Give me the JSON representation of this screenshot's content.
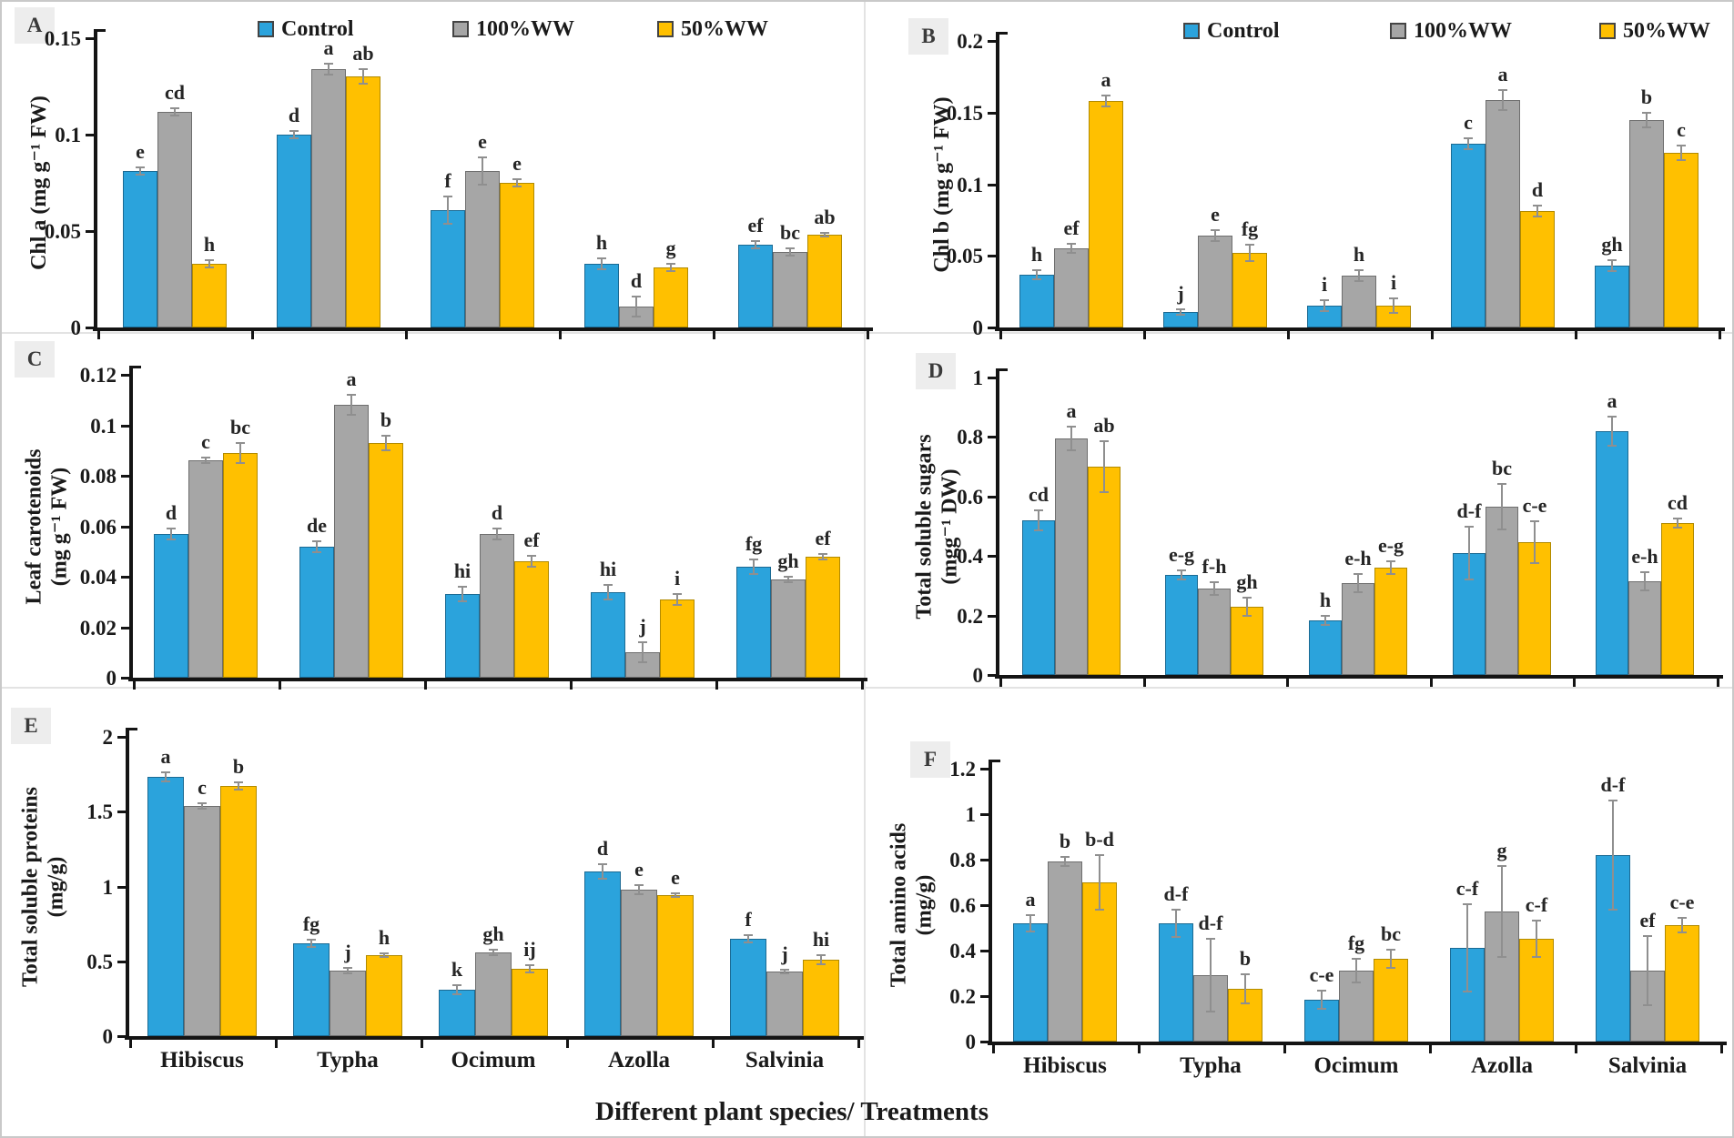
{
  "figure": {
    "x_axis_title": "Different plant species/ Treatments",
    "categories": [
      "Hibiscus",
      "Typha",
      "Ocimum",
      "Azolla",
      "Salvinia"
    ],
    "legend": [
      {
        "label": "Control",
        "color": "#2BA3DC"
      },
      {
        "label": "100%WW",
        "color": "#A6A6A6"
      },
      {
        "label": "50%WW",
        "color": "#FFC000"
      }
    ]
  },
  "chart_data": [
    {
      "panel": "A",
      "type": "bar",
      "ylabel_lines": [
        "Chl a (mg g⁻¹ FW)"
      ],
      "ylim": [
        0,
        0.15
      ],
      "yticks": [
        0,
        0.05,
        0.1,
        0.15
      ],
      "ytick_labels": [
        "0",
        "0.05",
        "0.1",
        "0.15"
      ],
      "has_legend": true,
      "show_category_labels": false,
      "series": [
        {
          "name": "Control",
          "values": [
            0.081,
            0.1,
            0.061,
            0.033,
            0.043
          ],
          "errors": [
            0.002,
            0.002,
            0.007,
            0.003,
            0.002
          ],
          "letters": [
            "e",
            "d",
            "f",
            "h",
            "ef"
          ]
        },
        {
          "name": "100%WW",
          "values": [
            0.112,
            0.134,
            0.081,
            0.011,
            0.039
          ],
          "errors": [
            0.002,
            0.003,
            0.007,
            0.005,
            0.002
          ],
          "letters": [
            "cd",
            "a",
            "e",
            "d",
            "bc"
          ]
        },
        {
          "name": "50%WW",
          "values": [
            0.033,
            0.13,
            0.075,
            0.031,
            0.048
          ],
          "errors": [
            0.002,
            0.004,
            0.002,
            0.002,
            0.001
          ],
          "letters": [
            "h",
            "ab",
            "e",
            "g",
            "ab"
          ]
        }
      ]
    },
    {
      "panel": "B",
      "type": "bar",
      "ylabel_lines": [
        "Chl b (mg g⁻¹ FW)"
      ],
      "ylim": [
        0,
        0.2
      ],
      "yticks": [
        0,
        0.05,
        0.1,
        0.15,
        0.2
      ],
      "ytick_labels": [
        "0",
        "0.05",
        "0.1",
        "0.15",
        "0.2"
      ],
      "has_legend": true,
      "show_category_labels": false,
      "series": [
        {
          "name": "Control",
          "values": [
            0.037,
            0.011,
            0.015,
            0.128,
            0.043
          ],
          "errors": [
            0.003,
            0.002,
            0.004,
            0.004,
            0.004
          ],
          "letters": [
            "h",
            "j",
            "i",
            "c",
            "gh"
          ]
        },
        {
          "name": "100%WW",
          "values": [
            0.055,
            0.064,
            0.036,
            0.159,
            0.145
          ],
          "errors": [
            0.003,
            0.004,
            0.004,
            0.007,
            0.005
          ],
          "letters": [
            "ef",
            "e",
            "h",
            "a",
            "b"
          ]
        },
        {
          "name": "50%WW",
          "values": [
            0.158,
            0.052,
            0.015,
            0.081,
            0.122
          ],
          "errors": [
            0.004,
            0.006,
            0.005,
            0.004,
            0.005
          ],
          "letters": [
            "a",
            "fg",
            "i",
            "d",
            "c"
          ]
        }
      ]
    },
    {
      "panel": "C",
      "type": "bar",
      "ylabel_lines": [
        "Leaf carotenoids",
        "(mg g⁻¹ FW)"
      ],
      "ylim": [
        0,
        0.12
      ],
      "yticks": [
        0,
        0.02,
        0.04,
        0.06,
        0.08,
        0.1,
        0.12
      ],
      "ytick_labels": [
        "0",
        "0.02",
        "0.04",
        "0.06",
        "0.08",
        "0.1",
        "0.12"
      ],
      "has_legend": false,
      "show_category_labels": false,
      "series": [
        {
          "name": "Control",
          "values": [
            0.057,
            0.052,
            0.033,
            0.034,
            0.044
          ],
          "errors": [
            0.002,
            0.002,
            0.003,
            0.003,
            0.003
          ],
          "letters": [
            "d",
            "de",
            "hi",
            "hi",
            "fg"
          ]
        },
        {
          "name": "100%WW",
          "values": [
            0.086,
            0.108,
            0.057,
            0.01,
            0.039
          ],
          "errors": [
            0.001,
            0.004,
            0.002,
            0.004,
            0.001
          ],
          "letters": [
            "c",
            "a",
            "d",
            "j",
            "gh"
          ]
        },
        {
          "name": "50%WW",
          "values": [
            0.089,
            0.093,
            0.046,
            0.031,
            0.048
          ],
          "errors": [
            0.004,
            0.003,
            0.002,
            0.002,
            0.001
          ],
          "letters": [
            "bc",
            "b",
            "ef",
            "i",
            "ef"
          ]
        }
      ]
    },
    {
      "panel": "D",
      "type": "bar",
      "ylabel_lines": [
        "Total soluble sugars",
        "(mgg⁻¹ DW)"
      ],
      "ylim": [
        0,
        1
      ],
      "yticks": [
        0,
        0.2,
        0.4,
        0.6,
        0.8,
        1
      ],
      "ytick_labels": [
        "0",
        "0.2",
        "0.4",
        "0.6",
        "0.8",
        "1"
      ],
      "has_legend": false,
      "show_category_labels": false,
      "series": [
        {
          "name": "Control",
          "values": [
            0.52,
            0.335,
            0.185,
            0.41,
            0.82
          ],
          "errors": [
            0.035,
            0.015,
            0.015,
            0.09,
            0.05
          ],
          "letters": [
            "cd",
            "e-g",
            "h",
            "d-f",
            "a"
          ]
        },
        {
          "name": "100%WW",
          "values": [
            0.795,
            0.29,
            0.31,
            0.565,
            0.315
          ],
          "errors": [
            0.04,
            0.02,
            0.03,
            0.075,
            0.03
          ],
          "letters": [
            "a",
            "f-h",
            "e-h",
            "bc",
            "e-h"
          ]
        },
        {
          "name": "50%WW",
          "values": [
            0.7,
            0.23,
            0.36,
            0.445,
            0.51
          ],
          "errors": [
            0.085,
            0.03,
            0.02,
            0.07,
            0.015
          ],
          "letters": [
            "ab",
            "gh",
            "e-g",
            "c-e",
            "cd"
          ]
        }
      ]
    },
    {
      "panel": "E",
      "type": "bar",
      "ylabel_lines": [
        "Total soluble proteins",
        "(mg/g)"
      ],
      "ylim": [
        0,
        2
      ],
      "yticks": [
        0,
        0.5,
        1,
        1.5,
        2
      ],
      "ytick_labels": [
        "0",
        "0.5",
        "1",
        "1.5",
        "2"
      ],
      "has_legend": false,
      "show_category_labels": true,
      "series": [
        {
          "name": "Control",
          "values": [
            1.73,
            0.62,
            0.31,
            1.1,
            0.65
          ],
          "errors": [
            0.03,
            0.025,
            0.03,
            0.05,
            0.025
          ],
          "letters": [
            "a",
            "fg",
            "k",
            "d",
            "f"
          ]
        },
        {
          "name": "100%WW",
          "values": [
            1.54,
            0.44,
            0.56,
            0.98,
            0.43
          ],
          "errors": [
            0.02,
            0.02,
            0.02,
            0.03,
            0.01
          ],
          "letters": [
            "c",
            "j",
            "gh",
            "e",
            "j"
          ]
        },
        {
          "name": "50%WW",
          "values": [
            1.67,
            0.54,
            0.45,
            0.94,
            0.51
          ],
          "errors": [
            0.025,
            0.01,
            0.025,
            0.01,
            0.03
          ],
          "letters": [
            "b",
            "h",
            "ij",
            "e",
            "hi"
          ]
        }
      ]
    },
    {
      "panel": "F",
      "type": "bar",
      "ylabel_lines": [
        "Total amino acids",
        "(mg/g)"
      ],
      "ylim": [
        0,
        1.2
      ],
      "yticks": [
        0,
        0.2,
        0.4,
        0.6,
        0.8,
        1,
        1.2
      ],
      "ytick_labels": [
        "0",
        "0.2",
        "0.4",
        "0.6",
        "0.8",
        "1",
        "1.2"
      ],
      "has_legend": false,
      "show_category_labels": true,
      "series": [
        {
          "name": "Control",
          "values": [
            0.52,
            0.52,
            0.185,
            0.41,
            0.82
          ],
          "errors": [
            0.035,
            0.06,
            0.04,
            0.19,
            0.24
          ],
          "letters": [
            "a",
            "d-f",
            "c-e",
            "c-f",
            "d-f"
          ]
        },
        {
          "name": "100%WW",
          "values": [
            0.79,
            0.29,
            0.31,
            0.57,
            0.31
          ],
          "errors": [
            0.02,
            0.16,
            0.05,
            0.2,
            0.15
          ],
          "letters": [
            "b",
            "d-f",
            "fg",
            "g",
            "ef"
          ]
        },
        {
          "name": "50%WW",
          "values": [
            0.7,
            0.23,
            0.365,
            0.45,
            0.51
          ],
          "errors": [
            0.12,
            0.065,
            0.04,
            0.08,
            0.03
          ],
          "letters": [
            "b-d",
            "b",
            "bc",
            "c-f",
            "c-e"
          ]
        }
      ]
    }
  ]
}
